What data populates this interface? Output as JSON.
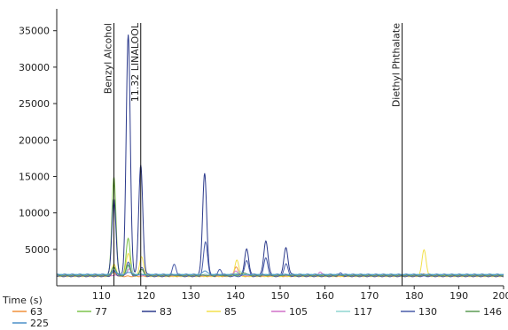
{
  "chart_data": {
    "type": "line",
    "xlabel": "Time (s)",
    "ylabel": "",
    "xlim": [
      100,
      200
    ],
    "ylim": [
      0,
      38000
    ],
    "x_ticks": [
      110,
      120,
      130,
      140,
      150,
      160,
      170,
      180,
      190,
      200
    ],
    "y_ticks": [
      5000,
      10000,
      15000,
      20000,
      25000,
      30000,
      35000
    ],
    "grid": false,
    "legend_position": "bottom",
    "baseline": 1300,
    "markers": [
      {
        "x": 112.8,
        "label": "Benzyl Alcohol"
      },
      {
        "x": 118.8,
        "label": "11.32 LINALOOL"
      },
      {
        "x": 177.3,
        "label": "Diethyl Phthalate"
      }
    ],
    "series": [
      {
        "name": "63",
        "color": "#f0903a",
        "peaks": [
          [
            112.8,
            1800
          ],
          [
            140.2,
            2600
          ],
          [
            182.2,
            1600
          ]
        ]
      },
      {
        "name": "77",
        "color": "#7cc24a",
        "peaks": [
          [
            112.8,
            15000
          ],
          [
            116.0,
            6500
          ],
          [
            119.0,
            2200
          ],
          [
            140.0,
            1700
          ]
        ]
      },
      {
        "name": "83",
        "color": "#2c3a8c",
        "peaks": [
          [
            112.8,
            12000
          ],
          [
            116.0,
            34500
          ],
          [
            118.8,
            16500
          ],
          [
            133.1,
            15500
          ],
          [
            142.5,
            5000
          ],
          [
            146.8,
            6200
          ],
          [
            151.3,
            5200
          ]
        ]
      },
      {
        "name": "85",
        "color": "#f2e04a",
        "peaks": [
          [
            112.8,
            3000
          ],
          [
            116.0,
            4500
          ],
          [
            119.0,
            4000
          ],
          [
            140.3,
            3500
          ],
          [
            182.2,
            5000
          ]
        ]
      },
      {
        "name": "105",
        "color": "#d070c8",
        "peaks": [
          [
            116.2,
            2300
          ],
          [
            140.0,
            2000
          ],
          [
            159.0,
            1800
          ],
          [
            187.2,
            1600
          ]
        ]
      },
      {
        "name": "117",
        "color": "#8fd6d0",
        "peaks": [
          [
            112.8,
            2400
          ],
          [
            116.3,
            3000
          ],
          [
            141.0,
            2000
          ]
        ]
      },
      {
        "name": "130",
        "color": "#485aa8",
        "peaks": [
          [
            112.8,
            2100
          ],
          [
            116.0,
            3200
          ],
          [
            119.0,
            2500
          ],
          [
            126.3,
            2900
          ],
          [
            133.3,
            6000
          ],
          [
            136.5,
            2200
          ],
          [
            142.5,
            3500
          ],
          [
            146.8,
            3800
          ],
          [
            151.3,
            3000
          ],
          [
            163.5,
            1700
          ]
        ]
      },
      {
        "name": "146",
        "color": "#5a9a52",
        "peaks": [
          [
            112.8,
            2600
          ],
          [
            116.0,
            2800
          ],
          [
            119.0,
            2200
          ],
          [
            142.0,
            1800
          ]
        ]
      },
      {
        "name": "225",
        "color": "#4a90c8",
        "peaks": [
          [
            112.9,
            2000
          ],
          [
            116.2,
            1900
          ],
          [
            133.2,
            2100
          ]
        ]
      }
    ]
  }
}
